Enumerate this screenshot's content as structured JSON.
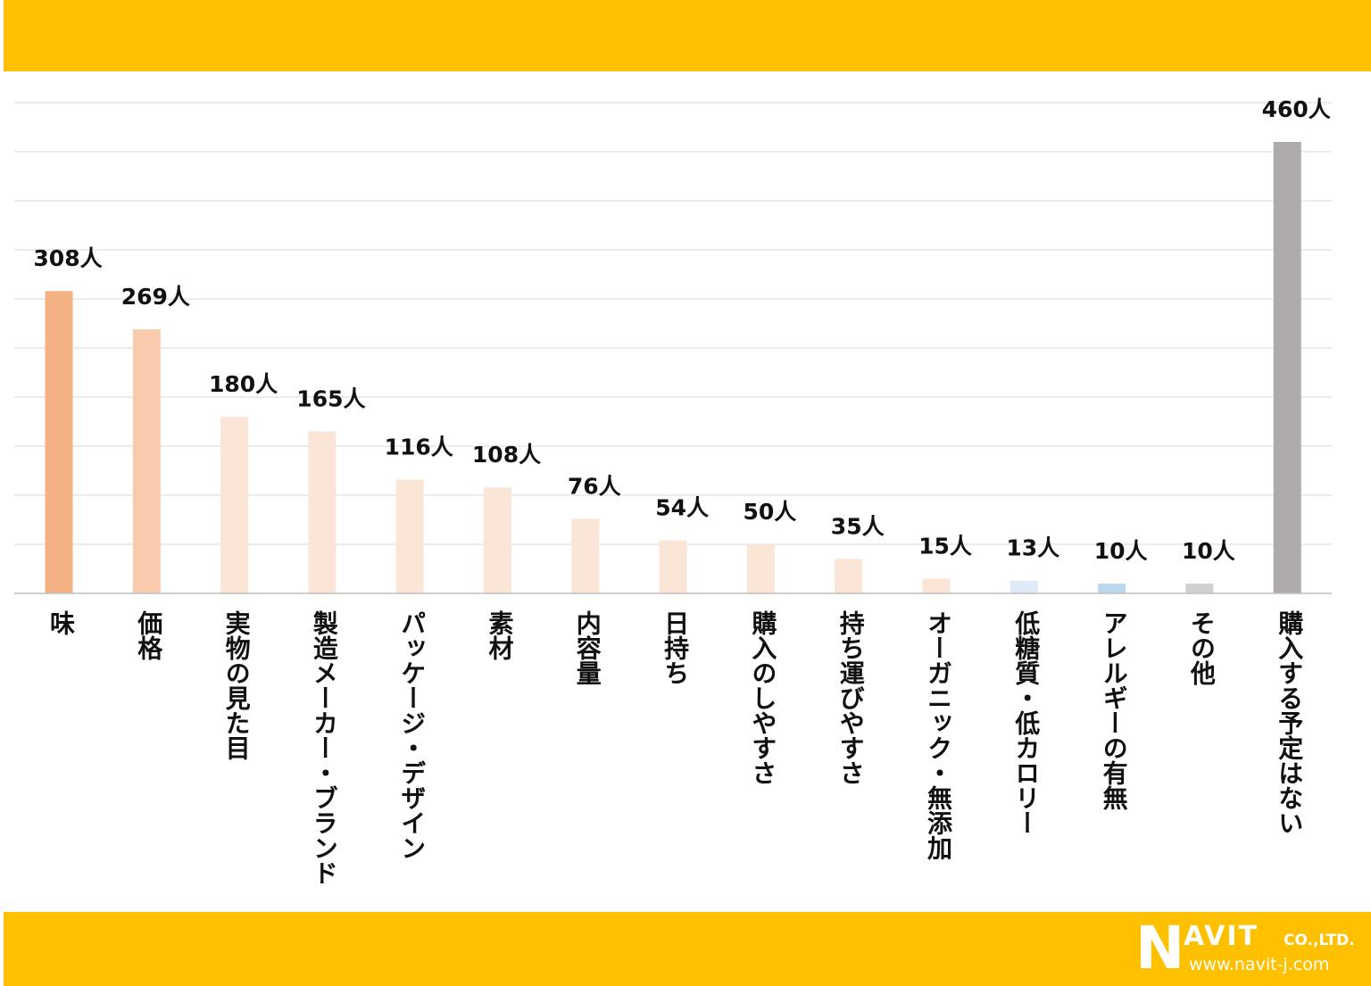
{
  "colors": {
    "band": "#FFC000",
    "grid": "#D9D9D9",
    "axis": "#BFBFBF",
    "value_text": "#111111"
  },
  "chart_data": {
    "type": "bar",
    "title": "",
    "xlabel": "",
    "ylabel": "",
    "ylim": [
      0,
      500
    ],
    "grid": true,
    "unit_suffix": "人",
    "categories": [
      "味",
      "価格",
      "実物の見た目",
      "製造メーカー・ブランド",
      "パッケージ・デザイン",
      "素材",
      "内容量",
      "日持ち",
      "購入のしやすさ",
      "持ち運びやすさ",
      "オーガニック・無添加",
      "低糖質・低カロリー",
      "アレルギーの有無",
      "その他",
      "購入する予定はない"
    ],
    "values": [
      308,
      269,
      180,
      165,
      116,
      108,
      76,
      54,
      50,
      35,
      15,
      13,
      10,
      10,
      460
    ],
    "value_labels": [
      "308人",
      "269人",
      "180人",
      "165人",
      "116人",
      "108人",
      "76人",
      "54人",
      "50人",
      "35人",
      "15人",
      "13人",
      "10人",
      "10人",
      "460人"
    ],
    "bar_colors": [
      "#F4B183",
      "#F8CBAD",
      "#FBE5D6",
      "#FBE5D6",
      "#FBE5D6",
      "#FBE5D6",
      "#FBE5D6",
      "#FBE5D6",
      "#FBE5D6",
      "#FBE5D6",
      "#FBE5D6",
      "#DEEBF7",
      "#BDD7EE",
      "#D0D0D0",
      "#AFABAB"
    ]
  },
  "logo": {
    "letter": "N",
    "name": "AVIT",
    "suffix": "CO.,LTD.",
    "url": "www.navit-j.com"
  }
}
